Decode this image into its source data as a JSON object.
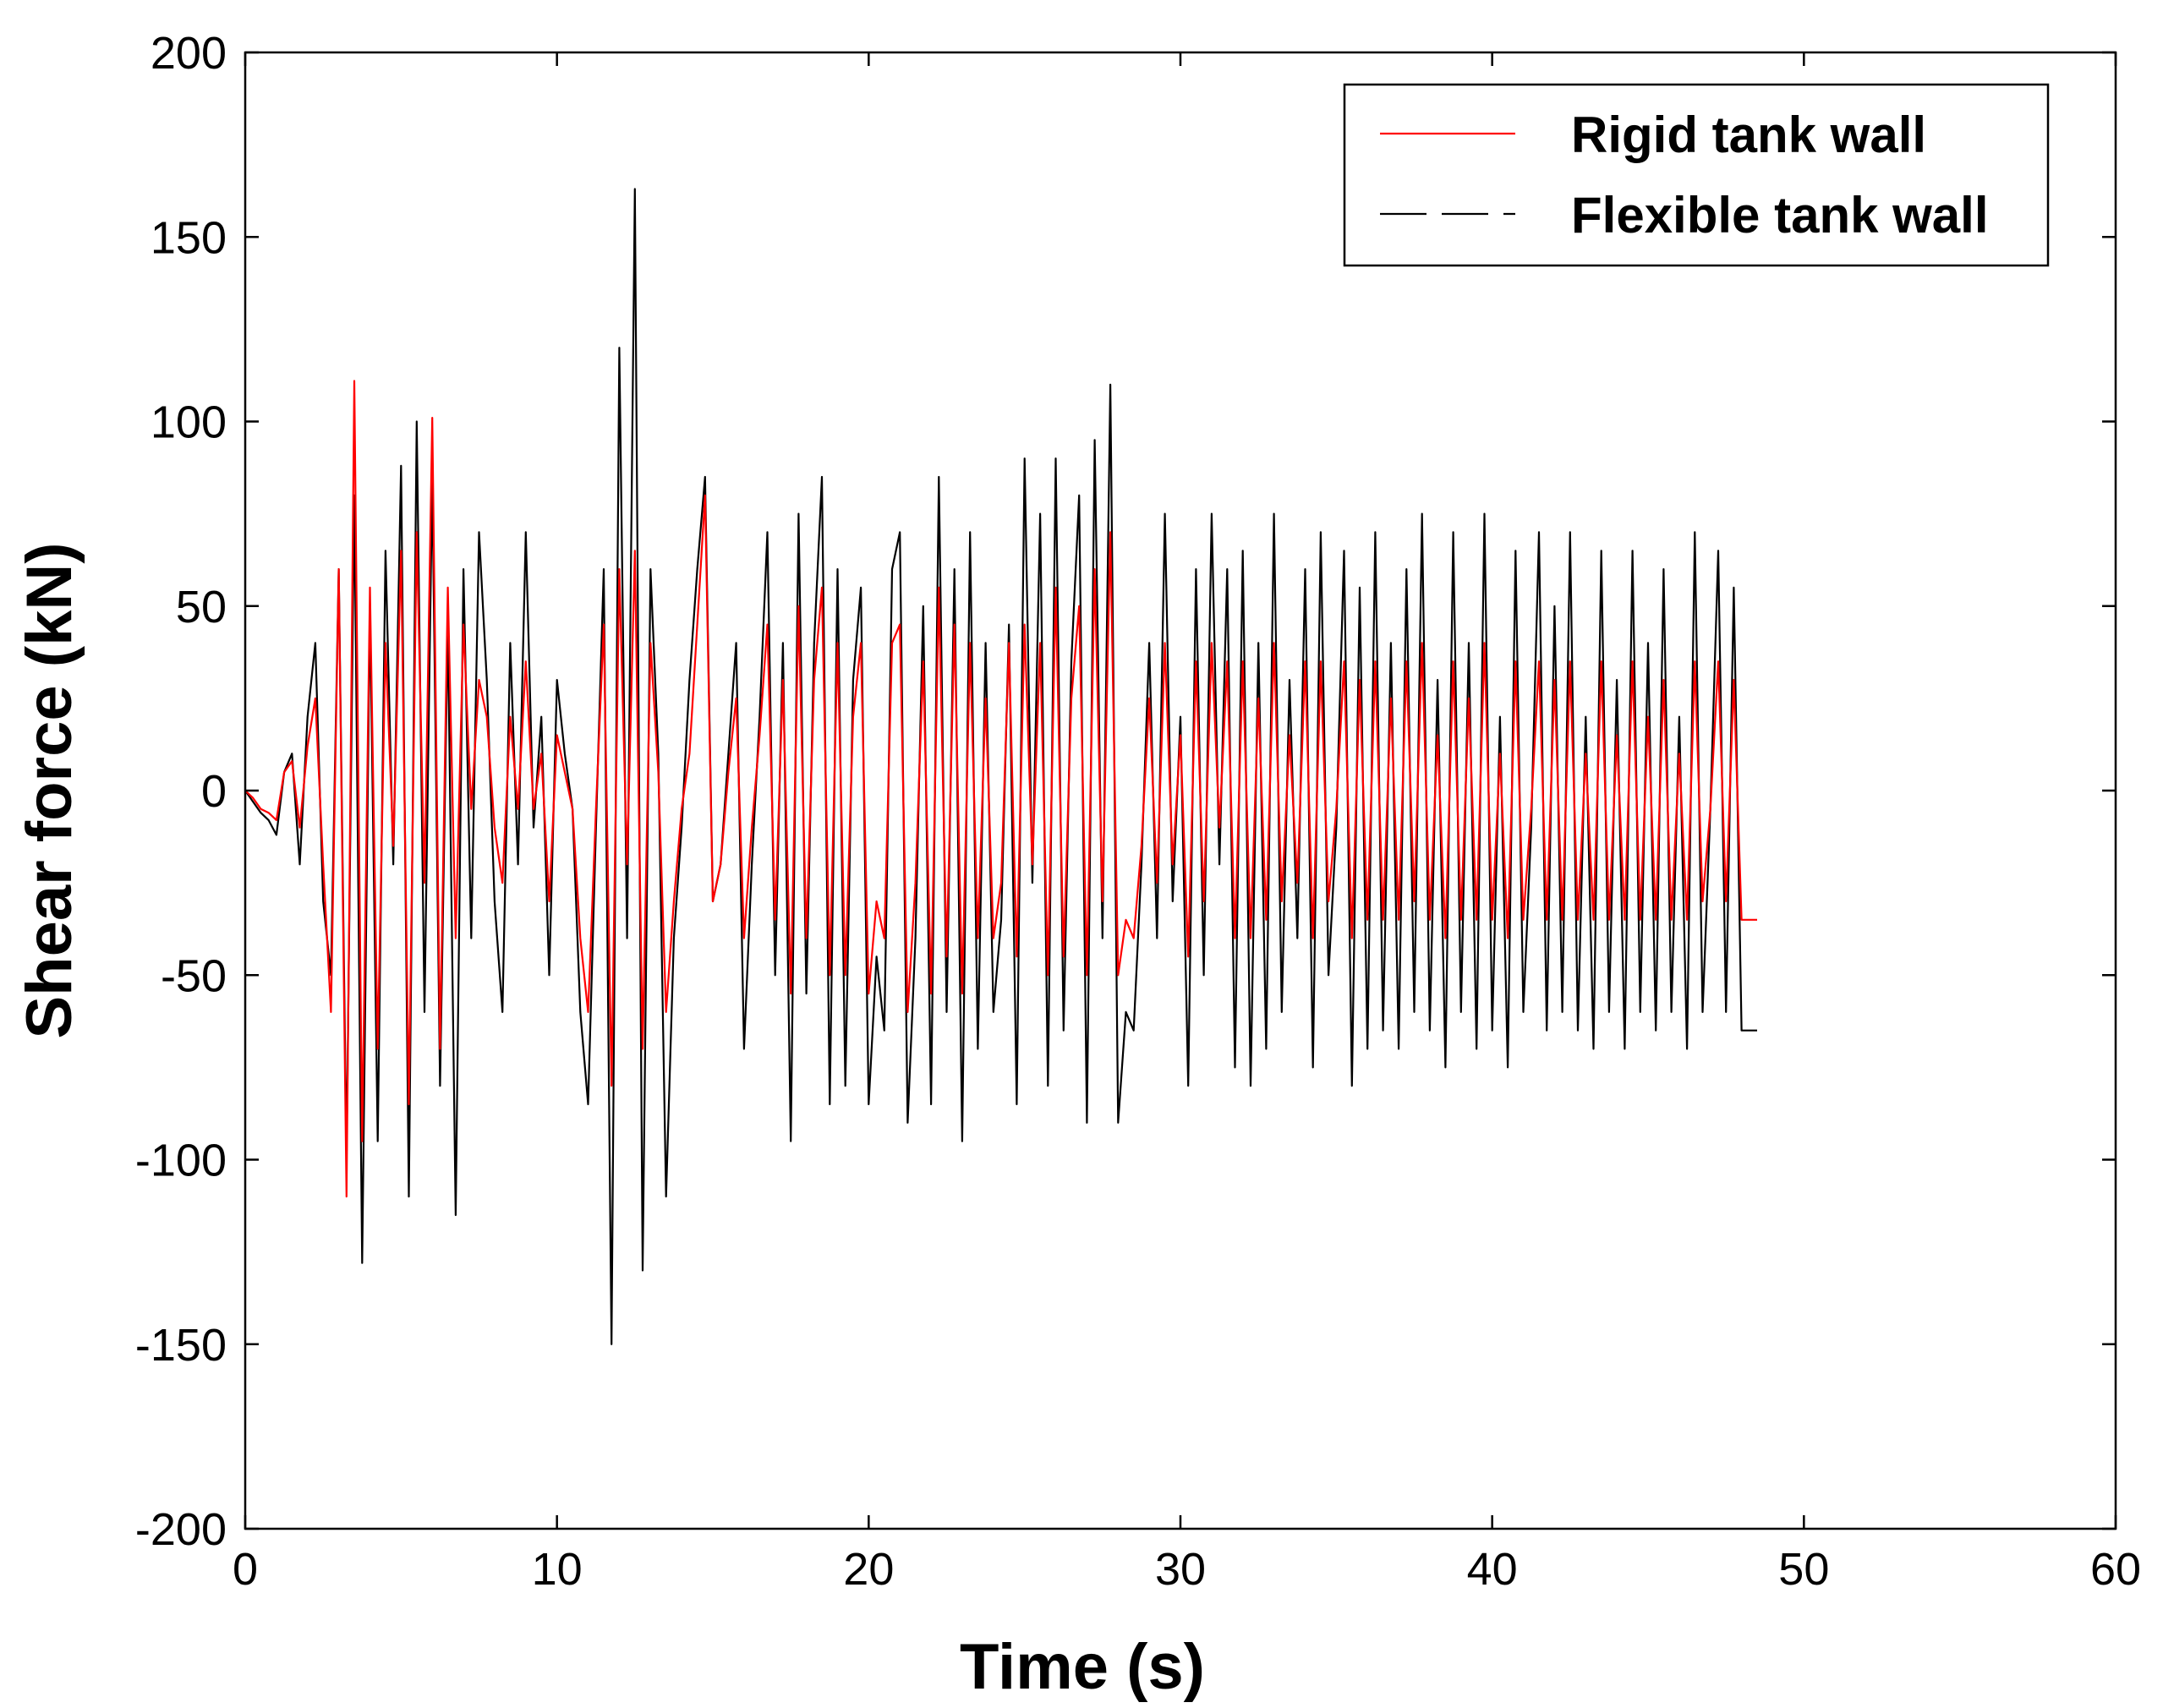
{
  "chart_data": {
    "type": "line",
    "title": "",
    "xlabel": "Time (s)",
    "ylabel": "Shear force (kN)",
    "xlim": [
      0,
      60
    ],
    "ylim": [
      -200,
      200
    ],
    "xticks": [
      0,
      10,
      20,
      30,
      40,
      50,
      60
    ],
    "yticks": [
      -200,
      -150,
      -100,
      -50,
      0,
      50,
      100,
      150,
      200
    ],
    "xtick_labels": [
      "0",
      "10",
      "20",
      "30",
      "40",
      "50",
      "60"
    ],
    "ytick_labels": [
      "-200",
      "-150",
      "-100",
      "-50",
      "0",
      "50",
      "100",
      "150",
      "200"
    ],
    "grid": false,
    "legend_position": "top-right",
    "sample_step": 0.25,
    "series": [
      {
        "name": "Flexible tank wall",
        "color": "#000000",
        "x_start": 0,
        "values": [
          0,
          -3,
          -6,
          -8,
          -12,
          5,
          10,
          -20,
          20,
          40,
          -30,
          -50,
          60,
          -100,
          80,
          -128,
          50,
          -95,
          65,
          -20,
          88,
          -110,
          100,
          -60,
          85,
          -80,
          45,
          -115,
          60,
          -40,
          70,
          30,
          -30,
          -60,
          40,
          -20,
          70,
          -10,
          20,
          -50,
          30,
          10,
          -5,
          -60,
          -85,
          -10,
          60,
          -150,
          120,
          -40,
          163,
          -130,
          60,
          10,
          -110,
          -40,
          -10,
          30,
          60,
          85,
          -30,
          -20,
          10,
          40,
          -70,
          -20,
          20,
          70,
          -50,
          40,
          -95,
          75,
          -55,
          40,
          85,
          -85,
          60,
          -80,
          30,
          55,
          -85,
          -45,
          -65,
          60,
          70,
          -90,
          -40,
          50,
          -85,
          85,
          -60,
          60,
          -95,
          70,
          -70,
          40,
          -60,
          -35,
          45,
          -85,
          90,
          -25,
          75,
          -80,
          90,
          -65,
          35,
          80,
          -90,
          95,
          -40,
          110,
          -90,
          -60,
          -65,
          -20,
          40,
          -40,
          75,
          -30,
          20,
          -80,
          60,
          -50,
          75,
          -20,
          60,
          -75,
          65,
          -80,
          40,
          -70,
          75,
          -60,
          30,
          -40,
          60,
          -75,
          70,
          -50,
          -10,
          65,
          -80,
          55,
          -70,
          70,
          -65,
          40,
          -70,
          60,
          -60,
          75,
          -65,
          30,
          -75,
          70,
          -60,
          40,
          -70,
          75,
          -65,
          20,
          -75,
          65,
          -60,
          -10,
          70,
          -65,
          50,
          -60,
          70,
          -65,
          20,
          -70,
          65,
          -60,
          30,
          -70,
          65,
          -60,
          40,
          -65,
          60,
          -60,
          20,
          -70,
          70,
          -60,
          -5,
          65,
          -60,
          55,
          -65,
          -65,
          -65
        ]
      },
      {
        "name": "Rigid tank wall",
        "color": "#ff0000",
        "x_start": 0,
        "values": [
          0,
          -2,
          -5,
          -6,
          -8,
          5,
          8,
          -10,
          12,
          25,
          -20,
          -60,
          60,
          -110,
          111,
          -95,
          55,
          -70,
          40,
          -15,
          65,
          -85,
          70,
          -25,
          101,
          -70,
          55,
          -40,
          45,
          -5,
          30,
          20,
          -10,
          -25,
          20,
          -5,
          35,
          -5,
          10,
          -30,
          15,
          5,
          -5,
          -40,
          -60,
          -5,
          45,
          -80,
          60,
          -20,
          65,
          -70,
          40,
          5,
          -60,
          -30,
          -5,
          10,
          45,
          80,
          -30,
          -20,
          5,
          25,
          -40,
          -10,
          15,
          45,
          -35,
          30,
          -55,
          50,
          -40,
          30,
          55,
          -50,
          40,
          -50,
          20,
          40,
          -55,
          -30,
          -40,
          40,
          45,
          -60,
          -25,
          35,
          -55,
          55,
          -45,
          45,
          -55,
          40,
          -40,
          25,
          -40,
          -25,
          40,
          -45,
          45,
          -20,
          40,
          -50,
          55,
          -45,
          25,
          50,
          -50,
          60,
          -30,
          70,
          -50,
          -35,
          -40,
          -15,
          25,
          -25,
          40,
          -20,
          15,
          -45,
          35,
          -30,
          40,
          -10,
          35,
          -40,
          35,
          -40,
          25,
          -35,
          40,
          -30,
          15,
          -25,
          35,
          -40,
          35,
          -30,
          -5,
          35,
          -40,
          30,
          -35,
          35,
          -35,
          25,
          -35,
          35,
          -30,
          40,
          -35,
          15,
          -40,
          35,
          -35,
          25,
          -35,
          40,
          -35,
          10,
          -40,
          35,
          -35,
          -5,
          35,
          -35,
          30,
          -35,
          35,
          -35,
          10,
          -35,
          35,
          -35,
          15,
          -35,
          35,
          -35,
          20,
          -35,
          30,
          -35,
          10,
          -35,
          35,
          -30,
          -5,
          35,
          -30,
          30,
          -35,
          -35,
          -35
        ]
      }
    ]
  }
}
